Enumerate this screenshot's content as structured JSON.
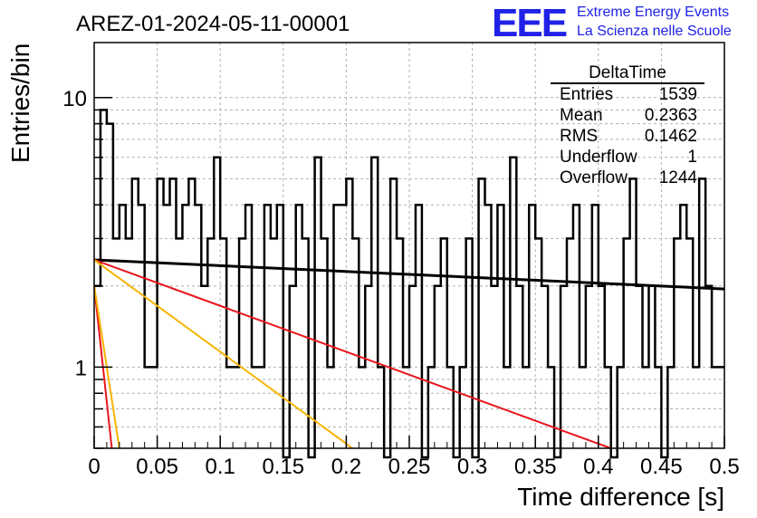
{
  "header": {
    "run_title": "AREZ-01-2024-05-11-00001",
    "logo_text": "EEE",
    "logo_line1": "Extreme Energy Events",
    "logo_line2": "La Scienza nelle Scuole"
  },
  "stats": {
    "title": "DeltaTime",
    "rows": [
      {
        "label": "Entries",
        "value": "1539"
      },
      {
        "label": "Mean",
        "value": "0.2363"
      },
      {
        "label": "RMS",
        "value": "0.1462"
      },
      {
        "label": "Underflow",
        "value": "1"
      },
      {
        "label": "Overflow",
        "value": "1244"
      }
    ]
  },
  "chart_data": {
    "type": "histogram",
    "xlabel": "Time difference [s]",
    "ylabel": "Entries/bin",
    "xlim": [
      0,
      0.5
    ],
    "ylim": [
      0.5,
      16
    ],
    "yscale": "log",
    "xticks": [
      "0",
      "0.05",
      "0.1",
      "0.15",
      "0.2",
      "0.25",
      "0.3",
      "0.35",
      "0.4",
      "0.45",
      "0.5"
    ],
    "yticks": [
      "1",
      "10"
    ],
    "grid": true,
    "bin_width": 0.005,
    "histogram_values": [
      2,
      9,
      8,
      3,
      4,
      3,
      5,
      4,
      1,
      1,
      5,
      4,
      5,
      3,
      4,
      5,
      4,
      2,
      3,
      6,
      3,
      1,
      1,
      3,
      4,
      1,
      1,
      4,
      3,
      4,
      0,
      2,
      4,
      3,
      0,
      6,
      3,
      1,
      4,
      4,
      5,
      3,
      1,
      2,
      6,
      1,
      0,
      5,
      3,
      1,
      2,
      4,
      0,
      1,
      2,
      3,
      1,
      0,
      1,
      3,
      0,
      5,
      4,
      2,
      4,
      1,
      6,
      2,
      1,
      4,
      3,
      2,
      1,
      0,
      2,
      3,
      4,
      1,
      2,
      4,
      2,
      1,
      0,
      1,
      3,
      5,
      2,
      1,
      2,
      1,
      0,
      1,
      3,
      4,
      3,
      1,
      5,
      2,
      1,
      1
    ],
    "series": [
      {
        "color": "#000000",
        "points": [
          [
            0.0,
            2.5
          ],
          [
            0.5,
            1.95
          ]
        ]
      },
      {
        "color": "#e8161d",
        "points": [
          [
            0.0,
            2.5
          ],
          [
            0.41,
            0.5
          ]
        ]
      },
      {
        "color": "#f5b400",
        "points": [
          [
            0.0,
            2.5
          ],
          [
            0.205,
            0.5
          ]
        ]
      },
      {
        "color": "#e8161d",
        "points": [
          [
            0.0,
            2.0
          ],
          [
            0.014,
            0.5
          ]
        ]
      },
      {
        "color": "#f5b400",
        "points": [
          [
            0.0,
            2.0
          ],
          [
            0.02,
            0.5
          ]
        ]
      }
    ]
  }
}
